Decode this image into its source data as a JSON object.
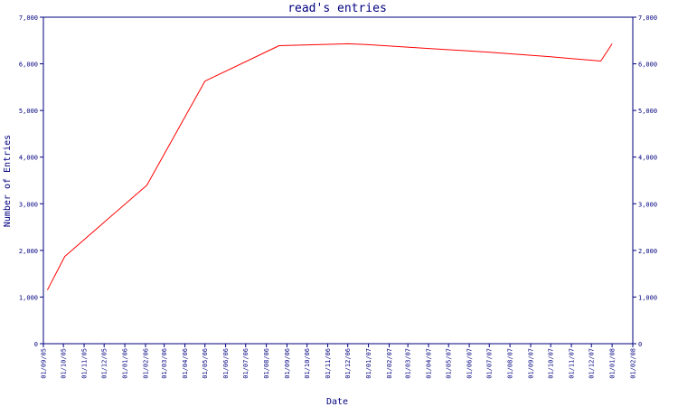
{
  "chart_data": {
    "type": "line",
    "title": "read's entries",
    "xlabel": "Date",
    "ylabel": "Number of Entries",
    "ylim": [
      0,
      7000
    ],
    "yticks": [
      0,
      1000,
      2000,
      3000,
      4000,
      5000,
      6000,
      7000
    ],
    "ytick_labels": [
      "0",
      "1,000",
      "2,000",
      "3,000",
      "4,000",
      "5,000",
      "6,000",
      "7,000"
    ],
    "xtick_labels": [
      "01/09/05",
      "01/10/05",
      "01/11/05",
      "01/12/05",
      "01/01/06",
      "01/02/06",
      "01/03/06",
      "01/04/06",
      "01/05/06",
      "01/06/06",
      "01/07/06",
      "01/08/06",
      "01/09/06",
      "01/10/06",
      "01/11/06",
      "01/12/06",
      "01/01/07",
      "01/02/07",
      "01/03/07",
      "01/04/07",
      "01/05/07",
      "01/06/07",
      "01/07/07",
      "01/08/07",
      "01/09/07",
      "01/10/07",
      "01/11/07",
      "01/12/07",
      "01/01/08",
      "01/02/08"
    ],
    "xlim": [
      "2005-09-01",
      "2008-02-01"
    ],
    "series": [
      {
        "color": "#ff0000",
        "points": [
          {
            "x": "2005-09-07",
            "y": 1150
          },
          {
            "x": "2005-10-03",
            "y": 1870
          },
          {
            "x": "2006-02-03",
            "y": 3400
          },
          {
            "x": "2006-05-01",
            "y": 5630
          },
          {
            "x": "2006-08-20",
            "y": 6390
          },
          {
            "x": "2006-10-15",
            "y": 6410
          },
          {
            "x": "2006-12-01",
            "y": 6430
          },
          {
            "x": "2007-01-01",
            "y": 6410
          },
          {
            "x": "2007-04-01",
            "y": 6330
          },
          {
            "x": "2007-07-01",
            "y": 6250
          },
          {
            "x": "2007-10-01",
            "y": 6150
          },
          {
            "x": "2007-12-15",
            "y": 6060
          },
          {
            "x": "2008-01-01",
            "y": 6430
          }
        ]
      }
    ],
    "grid": false,
    "right_axis_mirrored": true
  }
}
